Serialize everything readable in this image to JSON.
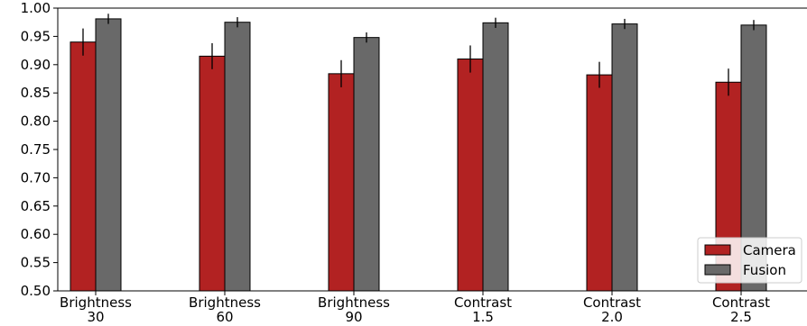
{
  "chart_data": {
    "type": "bar",
    "categories": [
      [
        "Brightness",
        "30"
      ],
      [
        "Brightness",
        "60"
      ],
      [
        "Brightness",
        "90"
      ],
      [
        "Contrast",
        "1.5"
      ],
      [
        "Contrast",
        "2.0"
      ],
      [
        "Contrast",
        "2.5"
      ]
    ],
    "series": [
      {
        "name": "Camera",
        "color": "#b22222",
        "values": [
          0.94,
          0.915,
          0.884,
          0.91,
          0.882,
          0.869
        ],
        "errors": [
          0.024,
          0.023,
          0.024,
          0.024,
          0.023,
          0.024
        ]
      },
      {
        "name": "Fusion",
        "color": "#696969",
        "values": [
          0.981,
          0.975,
          0.948,
          0.974,
          0.972,
          0.97
        ],
        "errors": [
          0.009,
          0.009,
          0.009,
          0.009,
          0.009,
          0.009
        ]
      }
    ],
    "ylim": [
      0.5,
      1.0
    ],
    "yticks": [
      "0.50",
      "0.55",
      "0.60",
      "0.65",
      "0.70",
      "0.75",
      "0.80",
      "0.85",
      "0.90",
      "0.95",
      "1.00"
    ],
    "title": "",
    "xlabel": "",
    "ylabel": "",
    "grid": false,
    "legend_position": "bottom-right"
  }
}
